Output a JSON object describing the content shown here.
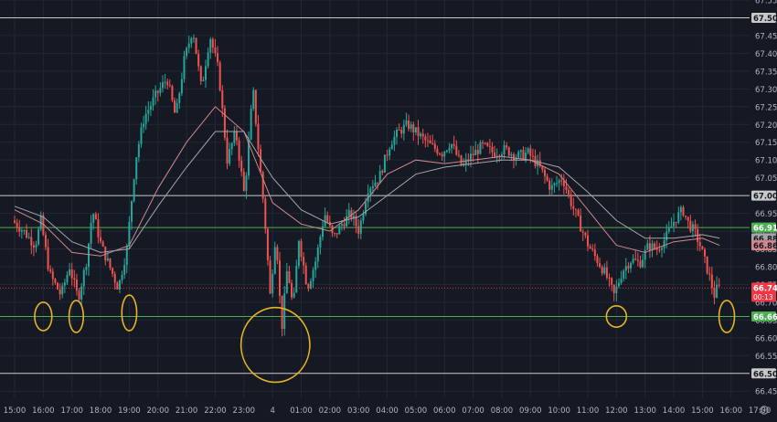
{
  "colors": {
    "background": "#151924",
    "grid": "#232733",
    "axis_text": "#b2b5be",
    "candle_up": "#26a69a",
    "candle_down": "#ef5350",
    "ma_fast": "#d4868a",
    "ma_slow": "#a8a3a8",
    "level_line": "#c8c8c8",
    "support_line": "#4caf50",
    "circle": "#e6b422",
    "price_tag": "#f23645",
    "settings_icon": "#9598a1"
  },
  "chart_data": {
    "type": "candlestick",
    "title": "",
    "xlabel": "",
    "ylabel": "",
    "ylim": [
      66.43,
      67.55
    ],
    "x_ticks": [
      "15:00",
      "16:00",
      "17:00",
      "18:00",
      "19:00",
      "20:00",
      "21:00",
      "22:00",
      "23:00",
      "4",
      "01:00",
      "02:00",
      "03:00",
      "04:00",
      "05:00",
      "06:00",
      "07:00",
      "08:00",
      "09:00",
      "10:00",
      "11:00",
      "12:00",
      "13:00",
      "14:00",
      "15:00",
      "16:00",
      "17:00"
    ],
    "y_ticks": [
      "67.55",
      "67.50",
      "67.45",
      "67.40",
      "67.35",
      "67.30",
      "67.25",
      "67.20",
      "67.15",
      "67.10",
      "67.05",
      "67.00",
      "66.95",
      "66.90",
      "66.85",
      "66.80",
      "66.75",
      "66.70",
      "66.65",
      "66.60",
      "66.55",
      "66.50",
      "66.45"
    ],
    "price_path": [
      [
        0,
        66.93
      ],
      [
        0.4,
        66.9
      ],
      [
        0.8,
        66.86
      ],
      [
        1.0,
        66.93
      ],
      [
        1.3,
        66.78
      ],
      [
        1.7,
        66.72
      ],
      [
        2.0,
        66.8
      ],
      [
        2.3,
        66.71
      ],
      [
        2.6,
        66.82
      ],
      [
        2.8,
        66.96
      ],
      [
        3.1,
        66.86
      ],
      [
        3.4,
        66.8
      ],
      [
        3.7,
        66.74
      ],
      [
        4.0,
        66.85
      ],
      [
        4.3,
        67.1
      ],
      [
        4.6,
        67.22
      ],
      [
        5.0,
        67.28
      ],
      [
        5.4,
        67.33
      ],
      [
        5.7,
        67.22
      ],
      [
        6.0,
        67.38
      ],
      [
        6.3,
        67.47
      ],
      [
        6.6,
        67.3
      ],
      [
        6.9,
        67.45
      ],
      [
        7.2,
        67.35
      ],
      [
        7.5,
        67.1
      ],
      [
        7.8,
        67.18
      ],
      [
        8.1,
        67.0
      ],
      [
        8.4,
        67.3
      ],
      [
        8.6,
        67.12
      ],
      [
        8.8,
        66.95
      ],
      [
        9.0,
        66.72
      ],
      [
        9.2,
        66.9
      ],
      [
        9.4,
        66.62
      ],
      [
        9.6,
        66.8
      ],
      [
        9.8,
        66.68
      ],
      [
        10.0,
        66.88
      ],
      [
        10.3,
        66.74
      ],
      [
        10.6,
        66.82
      ],
      [
        10.9,
        66.95
      ],
      [
        11.2,
        66.88
      ],
      [
        11.5,
        66.92
      ],
      [
        11.8,
        66.95
      ],
      [
        12.1,
        66.9
      ],
      [
        12.4,
        67.02
      ],
      [
        12.8,
        67.05
      ],
      [
        13.2,
        67.15
      ],
      [
        13.5,
        67.18
      ],
      [
        13.8,
        67.2
      ],
      [
        14.2,
        67.17
      ],
      [
        14.6,
        67.14
      ],
      [
        15.0,
        67.12
      ],
      [
        15.3,
        67.15
      ],
      [
        15.7,
        67.08
      ],
      [
        16.0,
        67.11
      ],
      [
        16.4,
        67.14
      ],
      [
        16.8,
        67.12
      ],
      [
        17.2,
        67.13
      ],
      [
        17.6,
        67.11
      ],
      [
        18.0,
        67.12
      ],
      [
        18.4,
        67.08
      ],
      [
        18.8,
        67.02
      ],
      [
        19.2,
        67.05
      ],
      [
        19.5,
        66.98
      ],
      [
        19.8,
        66.92
      ],
      [
        20.1,
        66.86
      ],
      [
        20.4,
        66.82
      ],
      [
        20.7,
        66.78
      ],
      [
        21.0,
        66.72
      ],
      [
        21.3,
        66.79
      ],
      [
        21.6,
        66.82
      ],
      [
        21.9,
        66.81
      ],
      [
        22.2,
        66.86
      ],
      [
        22.5,
        66.85
      ],
      [
        22.8,
        66.88
      ],
      [
        23.1,
        66.93
      ],
      [
        23.4,
        66.96
      ],
      [
        23.6,
        66.92
      ],
      [
        23.8,
        66.9
      ],
      [
        24.0,
        66.86
      ],
      [
        24.3,
        66.78
      ],
      [
        24.5,
        66.72
      ],
      [
        24.6,
        66.74
      ]
    ],
    "moving_averages": [
      {
        "values": [
          [
            0,
            66.96
          ],
          [
            1,
            66.92
          ],
          [
            2,
            66.84
          ],
          [
            3,
            66.83
          ],
          [
            4,
            66.86
          ],
          [
            5,
            67.02
          ],
          [
            6,
            67.15
          ],
          [
            7,
            67.25
          ],
          [
            8,
            67.18
          ],
          [
            9,
            66.98
          ],
          [
            10,
            66.92
          ],
          [
            11,
            66.9
          ],
          [
            12,
            66.96
          ],
          [
            13,
            67.06
          ],
          [
            14,
            67.1
          ],
          [
            15,
            67.09
          ],
          [
            16,
            67.1
          ],
          [
            17,
            67.11
          ],
          [
            18,
            67.1
          ],
          [
            19,
            67.06
          ],
          [
            20,
            66.96
          ],
          [
            21,
            66.86
          ],
          [
            22,
            66.84
          ],
          [
            23,
            66.87
          ],
          [
            24,
            66.88
          ],
          [
            24.6,
            66.86
          ]
        ]
      },
      {
        "values": [
          [
            0,
            66.97
          ],
          [
            1,
            66.94
          ],
          [
            2,
            66.87
          ],
          [
            3,
            66.84
          ],
          [
            4,
            66.85
          ],
          [
            5,
            66.97
          ],
          [
            6,
            67.08
          ],
          [
            7,
            67.18
          ],
          [
            8,
            67.18
          ],
          [
            9,
            67.05
          ],
          [
            10,
            66.96
          ],
          [
            11,
            66.92
          ],
          [
            12,
            66.94
          ],
          [
            13,
            67.0
          ],
          [
            14,
            67.06
          ],
          [
            15,
            67.08
          ],
          [
            16,
            67.09
          ],
          [
            17,
            67.1
          ],
          [
            18,
            67.1
          ],
          [
            19,
            67.08
          ],
          [
            20,
            67.01
          ],
          [
            21,
            66.93
          ],
          [
            22,
            66.88
          ],
          [
            23,
            66.88
          ],
          [
            24,
            66.89
          ],
          [
            24.6,
            66.88
          ]
        ]
      }
    ],
    "horizontal_lines": [
      {
        "price": 67.5,
        "label": "67.50",
        "style": "level"
      },
      {
        "price": 67.0,
        "label": "67.00",
        "style": "level"
      },
      {
        "price": 66.91,
        "label": "66.91",
        "style": "support"
      },
      {
        "price": 66.66,
        "label": "66.66",
        "style": "support"
      },
      {
        "price": 66.5,
        "label": "66.50",
        "style": "level"
      }
    ],
    "side_labels": [
      {
        "price": 66.88,
        "label": "66.88",
        "bg": "#a8a3a8",
        "fg": "#151924"
      },
      {
        "price": 66.86,
        "label": "66.86",
        "bg": "#d4868a",
        "fg": "#151924"
      }
    ],
    "current_price": {
      "price": 66.74,
      "label": "66.74",
      "countdown": "00:13"
    },
    "annotations": [
      {
        "type": "ellipse",
        "x": 1.0,
        "price": 66.66,
        "rx_hours": 0.3,
        "ry_price": 0.04
      },
      {
        "type": "ellipse",
        "x": 2.15,
        "price": 66.66,
        "rx_hours": 0.25,
        "ry_price": 0.045
      },
      {
        "type": "ellipse",
        "x": 4.0,
        "price": 66.67,
        "rx_hours": 0.26,
        "ry_price": 0.05
      },
      {
        "type": "ellipse",
        "x": 9.1,
        "price": 66.58,
        "rx_hours": 1.2,
        "ry_price": 0.105
      },
      {
        "type": "ellipse",
        "x": 21.0,
        "price": 66.66,
        "rx_hours": 0.35,
        "ry_price": 0.03
      },
      {
        "type": "ellipse",
        "x": 24.85,
        "price": 66.66,
        "rx_hours": 0.27,
        "ry_price": 0.045
      }
    ]
  }
}
